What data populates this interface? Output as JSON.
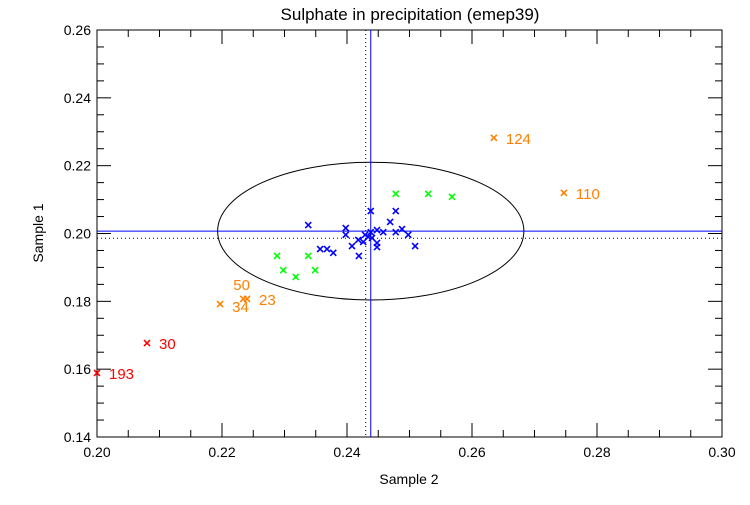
{
  "chart_data": {
    "type": "scatter",
    "title": "Sulphate in precipitation (emep39)",
    "xlabel": "Sample 2",
    "ylabel": "Sample 1",
    "xlim": [
      0.2,
      0.3
    ],
    "ylim": [
      0.14,
      0.26
    ],
    "xticks": [
      "0.20",
      "0.22",
      "0.24",
      "0.26",
      "0.28",
      "0.30"
    ],
    "yticks": [
      "0.14",
      "0.16",
      "0.18",
      "0.20",
      "0.22",
      "0.24",
      "0.26"
    ],
    "minor_step": 0.005,
    "grid": false,
    "colors": {
      "blue": "#0000ff",
      "green": "#00ff00",
      "orange": "#ff7f00",
      "red": "#ff0000",
      "axis": "#000000"
    },
    "mean_solid": {
      "x": 0.2438,
      "y": 0.2007,
      "color": "#0000ff"
    },
    "mean_dotted": {
      "x": 0.243,
      "y": 0.1986
    },
    "ellipse": {
      "cx": 0.2438,
      "cy": 0.2007,
      "rx": 0.0245,
      "ry": 0.0203
    },
    "series": [
      {
        "name": "blue",
        "color": "#0000ff",
        "points": [
          [
            0.2338,
            0.2025
          ],
          [
            0.2438,
            0.2066
          ],
          [
            0.2478,
            0.2066
          ],
          [
            0.2469,
            0.2034
          ],
          [
            0.2398,
            0.2016
          ],
          [
            0.2398,
            0.1996
          ],
          [
            0.2488,
            0.2013
          ],
          [
            0.2478,
            0.2004
          ],
          [
            0.2498,
            0.1996
          ],
          [
            0.2509,
            0.1963
          ],
          [
            0.2357,
            0.1954
          ],
          [
            0.2368,
            0.1954
          ],
          [
            0.2378,
            0.1943
          ],
          [
            0.2419,
            0.1934
          ],
          [
            0.2408,
            0.1963
          ],
          [
            0.2418,
            0.1981
          ],
          [
            0.2426,
            0.1975
          ],
          [
            0.2429,
            0.1996
          ],
          [
            0.2438,
            0.2004
          ],
          [
            0.2448,
            0.201
          ],
          [
            0.2458,
            0.2004
          ],
          [
            0.244,
            0.1987
          ],
          [
            0.2448,
            0.1972
          ],
          [
            0.2448,
            0.196
          ],
          [
            0.2434,
            0.199
          ]
        ]
      },
      {
        "name": "green",
        "color": "#00ff00",
        "points": [
          [
            0.2478,
            0.2117
          ],
          [
            0.253,
            0.2117
          ],
          [
            0.2568,
            0.2108
          ],
          [
            0.2288,
            0.1934
          ],
          [
            0.2338,
            0.1934
          ],
          [
            0.2298,
            0.1892
          ],
          [
            0.2349,
            0.1892
          ],
          [
            0.2318,
            0.1872
          ]
        ]
      },
      {
        "name": "orange",
        "color": "#ff7f00",
        "points": [
          {
            "x": 0.2635,
            "y": 0.2282,
            "label": "124"
          },
          {
            "x": 0.2747,
            "y": 0.212,
            "label": "110"
          },
          {
            "x": 0.2197,
            "y": 0.1792,
            "label": "34"
          },
          {
            "x": 0.2234,
            "y": 0.1807,
            "label": "50"
          },
          {
            "x": 0.224,
            "y": 0.1807,
            "label": "23"
          }
        ]
      },
      {
        "name": "red",
        "color": "#ff0000",
        "points": [
          {
            "x": 0.208,
            "y": 0.1677,
            "label": "30"
          },
          {
            "x": 0.2,
            "y": 0.1589,
            "label": "193"
          }
        ]
      }
    ]
  }
}
